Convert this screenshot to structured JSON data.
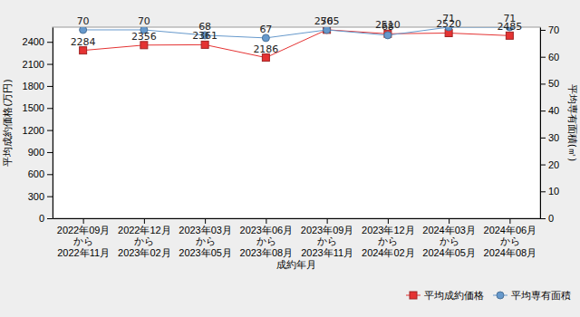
{
  "chart_data": {
    "type": "line",
    "categories": [
      "2022年09月\nから\n2022年11月",
      "2022年12月\nから\n2023年02月",
      "2023年03月\nから\n2023年05月",
      "2023年06月\nから\n2023年08月",
      "2023年09月\nから\n2023年11月",
      "2023年12月\nから\n2024年02月",
      "2024年03月\nから\n2024年05月",
      "2024年06月\nから\n2024年08月"
    ],
    "x_label": "成約年月",
    "y_label": "平均成約価格(万円)",
    "y2_label": "平均専有面積(㎡)",
    "ylim": [
      0,
      2600
    ],
    "yticks": [
      0,
      300,
      600,
      900,
      1200,
      1500,
      1800,
      2100,
      2400
    ],
    "y2lim": [
      0,
      71
    ],
    "y2ticks": [
      0,
      10,
      20,
      30,
      40,
      50,
      60,
      70
    ],
    "data_labels": true,
    "legend": "bottom-right",
    "grid": false,
    "series": [
      {
        "name": "平均成約価格",
        "color": "#e53333",
        "marker": "square",
        "values": [
          2284,
          2356,
          2361,
          2186,
          2565,
          2510,
          2520,
          2485
        ]
      },
      {
        "name": "平均専有面積",
        "color": "#6699cc",
        "marker": "circle",
        "axis": "y2",
        "values": [
          70,
          70,
          68,
          67,
          70,
          68,
          71,
          71
        ]
      }
    ]
  }
}
